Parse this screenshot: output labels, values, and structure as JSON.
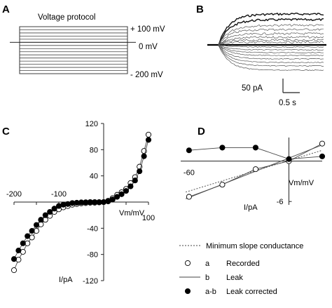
{
  "panels": {
    "A": "A",
    "B": "B",
    "C": "C",
    "D": "D"
  },
  "protocol": {
    "title": "Voltage protocol",
    "top_label": "+ 100 mV",
    "zero_label": "0 mV",
    "bottom_label": "- 200 mV",
    "steps_mV": [
      100,
      80,
      60,
      40,
      20,
      0,
      -20,
      -40,
      -60,
      -80,
      -100,
      -120,
      -140,
      -160,
      -180,
      -200
    ]
  },
  "scalebar": {
    "current_label": "50 pA",
    "time_label": "0.5 s"
  },
  "chart_data": [
    {
      "type": "scatter",
      "panel": "C",
      "xlabel": "Vm/mV",
      "ylabel": "I/pA",
      "xlim": [
        -200,
        100
      ],
      "ylim": [
        -120,
        120
      ],
      "x_ticks": [
        "-200",
        "-100",
        "100"
      ],
      "y_ticks": [
        "120",
        "80",
        "40",
        "-40",
        "-80",
        "-120"
      ],
      "series": [
        {
          "name": "Recorded",
          "marker": "open-circle",
          "x": [
            -200,
            -190,
            -180,
            -170,
            -160,
            -150,
            -140,
            -130,
            -120,
            -110,
            -100,
            -90,
            -80,
            -70,
            -60,
            -50,
            -40,
            -30,
            -20,
            -10,
            0,
            10,
            20,
            30,
            40,
            50,
            60,
            70,
            80,
            90,
            100
          ],
          "y": [
            -104,
            -88,
            -76,
            -63,
            -54,
            -44,
            -34,
            -27,
            -21,
            -15,
            -11,
            -8,
            -6,
            -4,
            -3,
            -2,
            -1.5,
            -1,
            -1,
            -0.5,
            0,
            2,
            6,
            11,
            15,
            20,
            29,
            38,
            54,
            78,
            103
          ]
        },
        {
          "name": "Leak corrected",
          "marker": "filled-circle",
          "x": [
            -200,
            -190,
            -180,
            -170,
            -160,
            -150,
            -140,
            -130,
            -120,
            -110,
            -100,
            -90,
            -80,
            -70,
            -60,
            -50,
            -40,
            -30,
            -20,
            -10,
            0,
            10,
            20,
            30,
            40,
            50,
            60,
            70,
            80,
            90,
            100
          ],
          "y": [
            -87,
            -74,
            -63,
            -52,
            -44,
            -35,
            -27,
            -20,
            -15,
            -10,
            -6,
            -4,
            -3,
            -1.5,
            -1,
            -0.5,
            -0.3,
            0,
            0,
            0,
            0,
            1,
            4,
            8,
            12,
            17,
            24,
            33,
            47,
            70,
            95
          ]
        }
      ]
    },
    {
      "type": "scatter",
      "panel": "D",
      "xlabel": "Vm/mV",
      "ylabel": "I/pA",
      "xlim": [
        -65,
        20
      ],
      "ylim": [
        -6.5,
        3.5
      ],
      "x_ticks": [
        "-60"
      ],
      "y_ticks": [
        "-6"
      ],
      "series": [
        {
          "name": "Recorded",
          "marker": "open-circle",
          "x": [
            -60,
            -40,
            -20,
            0,
            20
          ],
          "y": [
            -5.3,
            -3.5,
            -1.2,
            0,
            2.6
          ]
        },
        {
          "name": "Leak corrected",
          "marker": "filled-circle",
          "x": [
            -60,
            -40,
            -20,
            0,
            20
          ],
          "y": [
            1.6,
            2.0,
            2.0,
            0.3,
            0.7
          ]
        }
      ],
      "lines": [
        {
          "name": "Minimum slope conductance",
          "style": "dotted",
          "x": [
            -62,
            20
          ],
          "y": [
            -4.6,
            1.6
          ]
        },
        {
          "name": "Leak",
          "style": "solid",
          "x": [
            -62,
            20
          ],
          "y": [
            -5.6,
            2.4
          ]
        }
      ]
    }
  ],
  "legend": {
    "items": [
      {
        "key": "",
        "label": "Minimum slope conductance",
        "style": "dotted"
      },
      {
        "key": "a",
        "label": "Recorded",
        "style": "open-circle"
      },
      {
        "key": "b",
        "label": "Leak",
        "style": "solid"
      },
      {
        "key": "a-b",
        "label": "Leak corrected",
        "style": "filled-circle"
      }
    ]
  }
}
